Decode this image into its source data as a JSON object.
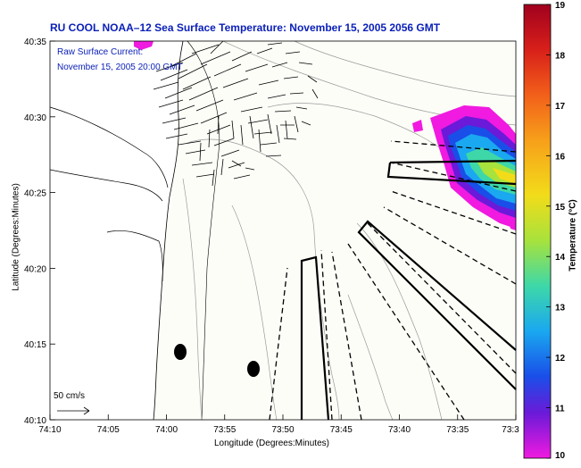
{
  "title": "RU COOL  NOAA–12  Sea Surface Temperature:  November 15, 2005 2056 GMT",
  "current_label": {
    "line1": "Raw Surface Current:",
    "line2": "November 15, 2005 20:00 GMT"
  },
  "scale_label": "50 cm/s",
  "axes": {
    "xlabel": "Longitude (Degrees:Minutes)",
    "ylabel": "Latitude (Degrees:Minutes)",
    "x_ticks": [
      "74:10",
      "74:05",
      "74:00",
      "73:55",
      "73:50",
      "73:45",
      "73:40",
      "73:35",
      "73:3"
    ],
    "y_ticks": [
      "40:35",
      "40:30",
      "40:25",
      "40:20",
      "40:15",
      "40:10"
    ]
  },
  "colorbar": {
    "label": "Temperature (°C)",
    "ticks": [
      "19",
      "18",
      "17",
      "16",
      "15",
      "14",
      "13",
      "12",
      "11",
      "10"
    ],
    "colors": [
      "#a0001e",
      "#d8201a",
      "#f2601a",
      "#f7a01a",
      "#f2dc1a",
      "#a8e23c",
      "#3ed8a8",
      "#1aa8f0",
      "#1a4ee8",
      "#6a1ad8",
      "#f01ae0"
    ]
  }
}
